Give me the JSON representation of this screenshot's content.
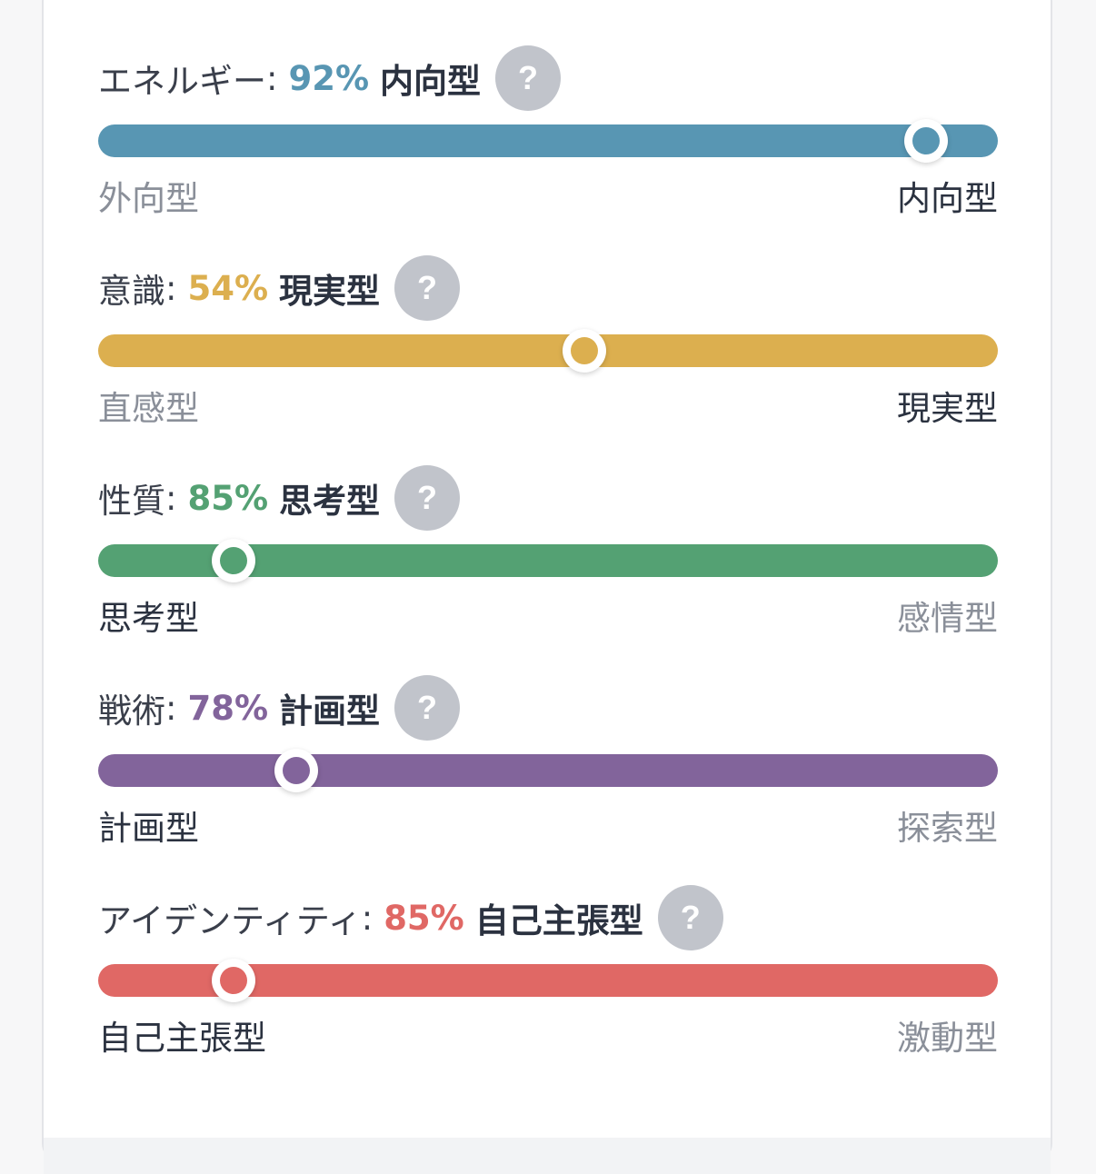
{
  "traits": [
    {
      "label": "エネルギー",
      "colon": ":",
      "percent": "92%",
      "percent_value": 92,
      "result": "内向型",
      "left_pole": "外向型",
      "right_pole": "内向型",
      "active_side": "right",
      "color": "#5896b3",
      "thumb_position": 0.92
    },
    {
      "label": "意識",
      "colon": ":",
      "percent": "54%",
      "percent_value": 54,
      "result": "現実型",
      "left_pole": "直感型",
      "right_pole": "現実型",
      "active_side": "right",
      "color": "#dcaf4f",
      "thumb_position": 0.54
    },
    {
      "label": "性質",
      "colon": ":",
      "percent": "85%",
      "percent_value": 85,
      "result": "思考型",
      "left_pole": "思考型",
      "right_pole": "感情型",
      "active_side": "left",
      "color": "#54a173",
      "thumb_position": 0.15
    },
    {
      "label": "戦術",
      "colon": ":",
      "percent": "78%",
      "percent_value": 78,
      "result": "計画型",
      "left_pole": "計画型",
      "right_pole": "探索型",
      "active_side": "left",
      "color": "#82649b",
      "thumb_position": 0.22
    },
    {
      "label": "アイデンティティ",
      "colon": ":",
      "percent": "85%",
      "percent_value": 85,
      "result": "自己主張型",
      "left_pole": "自己主張型",
      "right_pole": "激動型",
      "active_side": "left",
      "color": "#e06865",
      "thumb_position": 0.15
    }
  ],
  "help_icon": "question-mark-icon",
  "help_glyph": "?"
}
